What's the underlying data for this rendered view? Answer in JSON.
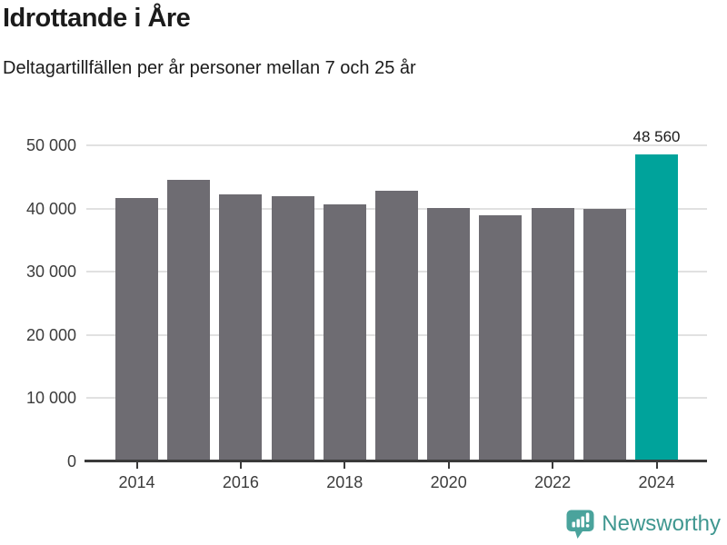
{
  "header": {
    "title": "Idrottande i Åre",
    "subtitle": "Deltagartillfällen per år personer mellan 7 och 25 år"
  },
  "chart_data": {
    "type": "bar",
    "title": "Idrottande i Åre",
    "subtitle": "Deltagartillfällen per år personer mellan 7 och 25 år",
    "xlabel": "",
    "ylabel": "",
    "categories": [
      "2014",
      "2015",
      "2016",
      "2017",
      "2018",
      "2019",
      "2020",
      "2021",
      "2022",
      "2023",
      "2024"
    ],
    "values": [
      41700,
      44600,
      42300,
      41900,
      40600,
      42800,
      40100,
      38900,
      40100,
      40000,
      48560
    ],
    "ylim": [
      0,
      50000
    ],
    "grid": "horizontal",
    "legend": "none",
    "yticks": [
      {
        "value": 0,
        "label": "0"
      },
      {
        "value": 10000,
        "label": "10 000"
      },
      {
        "value": 20000,
        "label": "20 000"
      },
      {
        "value": 30000,
        "label": "30 000"
      },
      {
        "value": 40000,
        "label": "40 000"
      },
      {
        "value": 50000,
        "label": "50 000"
      }
    ],
    "xticks": [
      {
        "index": 0,
        "label": "2014"
      },
      {
        "index": 2,
        "label": "2016"
      },
      {
        "index": 4,
        "label": "2018"
      },
      {
        "index": 6,
        "label": "2020"
      },
      {
        "index": 8,
        "label": "2022"
      },
      {
        "index": 10,
        "label": "2024"
      }
    ],
    "highlight_index": 10,
    "highlight_value_label": "48 560",
    "bar_color": "#6e6c72",
    "highlight_color": "#00a39b"
  },
  "footer": {
    "brand": "Newsworthy",
    "brand_color": "#3f9790",
    "logo_icon": "newsworthy-speech-bubble-chart-icon"
  }
}
